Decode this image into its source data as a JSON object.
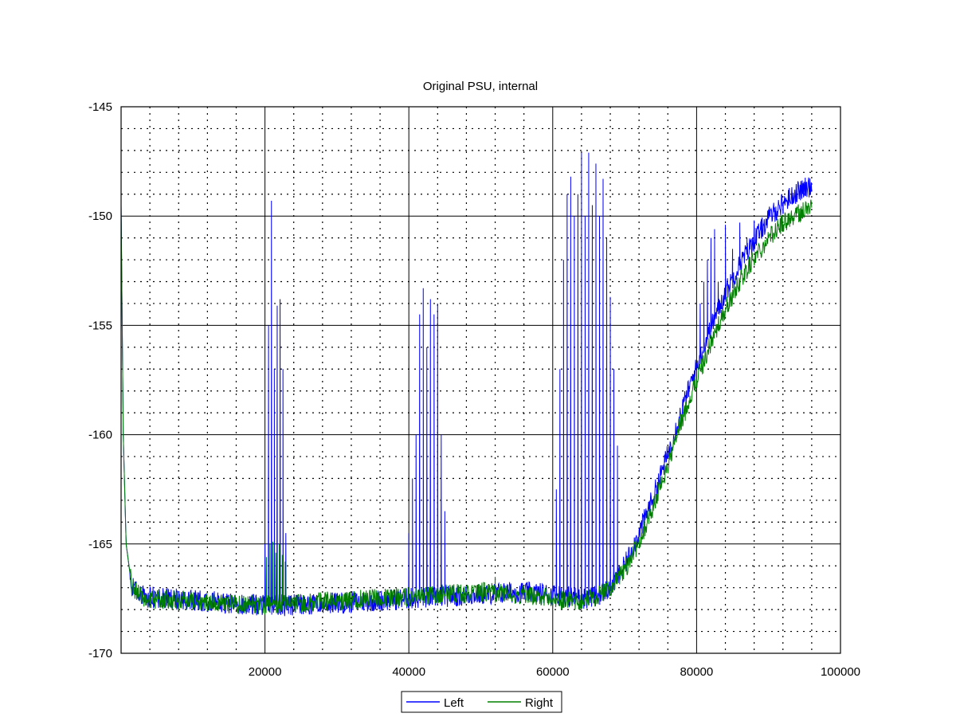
{
  "chart_data": {
    "type": "line",
    "title": "Original PSU, internal",
    "xlabel": "",
    "ylabel": "",
    "xlim": [
      0,
      100000
    ],
    "ylim": [
      -170,
      -145
    ],
    "x_ticks": [
      20000,
      40000,
      60000,
      80000,
      100000
    ],
    "x_tick_labels": [
      "20000",
      "40000",
      "60000",
      "80000",
      "100000"
    ],
    "y_ticks": [
      -170,
      -165,
      -160,
      -155,
      -150,
      -145
    ],
    "y_tick_labels": [
      "-170",
      "-165",
      "-160",
      "-155",
      "-150",
      "-145"
    ],
    "x_minor_step": 4000,
    "y_minor_step": 1,
    "grid": true,
    "legend_position": "bottom-center",
    "series": [
      {
        "name": "Left",
        "color": "#0000ff",
        "x_start": 0,
        "x_end": 96000,
        "noise_db": 0.5,
        "baseline": [
          [
            0,
            -149.5
          ],
          [
            300,
            -160
          ],
          [
            700,
            -165
          ],
          [
            1500,
            -167
          ],
          [
            3000,
            -167.4
          ],
          [
            10000,
            -167.6
          ],
          [
            20000,
            -167.8
          ],
          [
            25000,
            -167.8
          ],
          [
            30000,
            -167.7
          ],
          [
            40000,
            -167.5
          ],
          [
            50000,
            -167.3
          ],
          [
            55000,
            -167.2
          ],
          [
            60000,
            -167.3
          ],
          [
            62000,
            -167.4
          ],
          [
            64000,
            -167.5
          ],
          [
            66000,
            -167.4
          ],
          [
            68000,
            -167.0
          ],
          [
            70000,
            -166.0
          ],
          [
            72000,
            -164.5
          ],
          [
            74000,
            -162.8
          ],
          [
            76000,
            -160.9
          ],
          [
            78000,
            -158.8
          ],
          [
            80000,
            -156.9
          ],
          [
            82000,
            -155.1
          ],
          [
            84000,
            -153.5
          ],
          [
            86000,
            -152.2
          ],
          [
            88000,
            -151.1
          ],
          [
            90000,
            -150.1
          ],
          [
            92000,
            -149.4
          ],
          [
            94000,
            -148.9
          ],
          [
            96000,
            -148.6
          ]
        ],
        "spikes": [
          [
            20000,
            -165
          ],
          [
            20500,
            -155
          ],
          [
            20900,
            -149.3
          ],
          [
            21300,
            -157
          ],
          [
            21700,
            -154.1
          ],
          [
            22100,
            -153.8
          ],
          [
            22500,
            -157
          ],
          [
            22900,
            -164.5
          ],
          [
            40000,
            -164.5
          ],
          [
            40500,
            -162
          ],
          [
            41000,
            -160
          ],
          [
            41500,
            -154.5
          ],
          [
            42000,
            -153.3
          ],
          [
            42500,
            -156
          ],
          [
            43000,
            -153.8
          ],
          [
            43500,
            -154.5
          ],
          [
            44000,
            -154.0
          ],
          [
            44500,
            -160
          ],
          [
            45000,
            -163.5
          ],
          [
            60500,
            -162.5
          ],
          [
            61000,
            -157
          ],
          [
            61500,
            -152
          ],
          [
            62000,
            -149
          ],
          [
            62500,
            -148.2
          ],
          [
            63000,
            -150
          ],
          [
            63500,
            -149
          ],
          [
            64000,
            -147.1
          ],
          [
            64500,
            -150
          ],
          [
            65000,
            -147.1
          ],
          [
            65500,
            -149.5
          ],
          [
            66000,
            -147.6
          ],
          [
            66500,
            -150
          ],
          [
            67000,
            -148.3
          ],
          [
            67500,
            -151
          ],
          [
            68000,
            -153.7
          ],
          [
            68500,
            -157
          ],
          [
            69000,
            -160.5
          ],
          [
            80500,
            -154
          ],
          [
            81000,
            -153
          ],
          [
            81500,
            -152
          ],
          [
            82000,
            -151
          ],
          [
            82500,
            -150.6
          ],
          [
            83000,
            -153
          ],
          [
            84000,
            -150.4
          ],
          [
            85000,
            -151.5
          ],
          [
            86000,
            -150.3
          ],
          [
            87000,
            -151
          ],
          [
            88000,
            -150.2
          ],
          [
            89000,
            -151
          ],
          [
            90000,
            -149.7
          ],
          [
            91000,
            -149.8
          ],
          [
            92000,
            -149.9
          ]
        ]
      },
      {
        "name": "Right",
        "color": "#008000",
        "x_start": 0,
        "x_end": 96000,
        "noise_db": 0.45,
        "baseline": [
          [
            0,
            -149.5
          ],
          [
            300,
            -160
          ],
          [
            700,
            -165
          ],
          [
            1500,
            -167
          ],
          [
            3000,
            -167.5
          ],
          [
            10000,
            -167.6
          ],
          [
            20000,
            -167.8
          ],
          [
            25000,
            -167.7
          ],
          [
            30000,
            -167.6
          ],
          [
            40000,
            -167.4
          ],
          [
            50000,
            -167.2
          ],
          [
            55000,
            -167.3
          ],
          [
            60000,
            -167.5
          ],
          [
            62000,
            -167.6
          ],
          [
            64000,
            -167.6
          ],
          [
            66000,
            -167.4
          ],
          [
            68000,
            -167.0
          ],
          [
            70000,
            -166.2
          ],
          [
            72000,
            -164.9
          ],
          [
            74000,
            -163.3
          ],
          [
            76000,
            -161.4
          ],
          [
            78000,
            -159.3
          ],
          [
            80000,
            -157.5
          ],
          [
            82000,
            -155.8
          ],
          [
            84000,
            -154.3
          ],
          [
            86000,
            -153.0
          ],
          [
            88000,
            -151.9
          ],
          [
            90000,
            -151.0
          ],
          [
            92000,
            -150.3
          ],
          [
            94000,
            -149.9
          ],
          [
            96000,
            -149.6
          ]
        ],
        "spikes": [
          [
            20200,
            -165.6
          ],
          [
            20700,
            -165.0
          ],
          [
            21100,
            -164.9
          ],
          [
            21500,
            -165.4
          ],
          [
            22000,
            -165.0
          ],
          [
            22400,
            -165.5
          ],
          [
            22800,
            -165.8
          ],
          [
            52000,
            -166.5
          ]
        ]
      }
    ]
  }
}
